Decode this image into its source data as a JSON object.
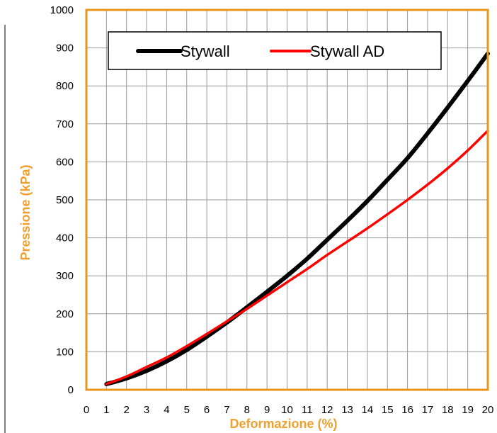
{
  "chart_data": {
    "type": "line",
    "title": "",
    "xlabel": "Deformazione (%)",
    "ylabel": "Pressione (kPa)",
    "xlim": [
      0,
      20
    ],
    "ylim": [
      0,
      1000
    ],
    "x_ticks": [
      0,
      1,
      2,
      3,
      4,
      5,
      6,
      7,
      8,
      9,
      10,
      11,
      12,
      13,
      14,
      15,
      16,
      17,
      18,
      19,
      20
    ],
    "y_ticks": [
      0,
      100,
      200,
      300,
      400,
      500,
      600,
      700,
      800,
      900,
      1000
    ],
    "grid": true,
    "legend_position": "top",
    "colors": {
      "axis_label": "#f0a030",
      "plot_border": "#e8961e",
      "grid": "#999999"
    },
    "series": [
      {
        "name": "Stywall",
        "color": "#000000",
        "x": [
          1,
          2,
          3,
          4,
          5,
          6,
          7,
          8,
          9,
          10,
          11,
          12,
          13,
          14,
          15,
          16,
          17,
          18,
          19,
          20
        ],
        "y": [
          15,
          30,
          50,
          75,
          105,
          140,
          177,
          217,
          258,
          300,
          345,
          395,
          445,
          497,
          553,
          610,
          675,
          743,
          813,
          885
        ]
      },
      {
        "name": "Stywall AD",
        "color": "#ff0000",
        "x": [
          1,
          2,
          3,
          4,
          5,
          6,
          7,
          8,
          9,
          10,
          11,
          12,
          13,
          14,
          15,
          16,
          17,
          18,
          19,
          20
        ],
        "y": [
          15,
          35,
          60,
          85,
          115,
          147,
          180,
          213,
          248,
          283,
          318,
          355,
          390,
          425,
          462,
          500,
          540,
          583,
          630,
          682
        ]
      }
    ]
  }
}
